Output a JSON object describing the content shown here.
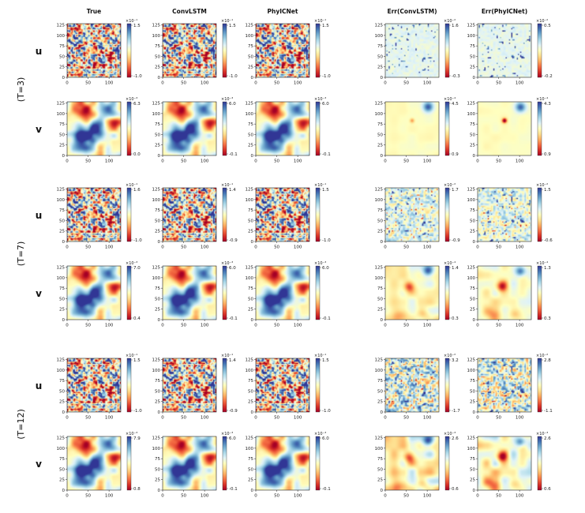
{
  "chart_data": {
    "type": "heatmap",
    "columns": [
      "True",
      "ConvLSTM",
      "PhyICNet",
      "Err(ConvLSTM)",
      "Err(PhyICNet)"
    ],
    "groups": [
      {
        "label": "(T=3)",
        "rows": [
          {
            "var": "u",
            "panels": [
              {
                "exp": "×10⁻¹",
                "max": "1.5",
                "min": "-1.0",
                "field": "u",
                "kind": "field"
              },
              {
                "exp": "×10⁻¹",
                "max": "1.5",
                "min": "-1.0",
                "field": "u",
                "kind": "field"
              },
              {
                "exp": "×10⁻¹",
                "max": "1.5",
                "min": "-1.0",
                "field": "u",
                "kind": "field"
              },
              {
                "exp": "×10⁻²",
                "max": "1.6",
                "min": "-0.3",
                "field": "u",
                "kind": "err"
              },
              {
                "exp": "×10⁻²",
                "max": "0.5",
                "min": "-0.2",
                "field": "u",
                "kind": "err"
              }
            ]
          },
          {
            "var": "v",
            "panels": [
              {
                "exp": "×10⁻³",
                "max": "6.3",
                "min": "0.0",
                "field": "v",
                "kind": "field"
              },
              {
                "exp": "×10⁻³",
                "max": "6.0",
                "min": "-0.1",
                "field": "v",
                "kind": "field"
              },
              {
                "exp": "×10⁻³",
                "max": "6.0",
                "min": "-0.1",
                "field": "v",
                "kind": "field"
              },
              {
                "exp": "×10⁻⁴",
                "max": "4.5",
                "min": "0.9",
                "field": "v",
                "kind": "err"
              },
              {
                "exp": "×10⁻⁴",
                "max": "4.3",
                "min": "0.9",
                "field": "v",
                "kind": "err"
              }
            ]
          }
        ]
      },
      {
        "label": "(T=7)",
        "rows": [
          {
            "var": "u",
            "panels": [
              {
                "exp": "×10⁻¹",
                "max": "1.6",
                "min": "-1.0",
                "field": "u",
                "kind": "field"
              },
              {
                "exp": "×10⁻¹",
                "max": "1.4",
                "min": "-0.9",
                "field": "u",
                "kind": "field"
              },
              {
                "exp": "×10⁻¹",
                "max": "1.5",
                "min": "-1.0",
                "field": "u",
                "kind": "field"
              },
              {
                "exp": "×10⁻²",
                "max": "1.7",
                "min": "-0.9",
                "field": "u",
                "kind": "err"
              },
              {
                "exp": "×10⁻²",
                "max": "1.5",
                "min": "-0.6",
                "field": "u",
                "kind": "err"
              }
            ]
          },
          {
            "var": "v",
            "panels": [
              {
                "exp": "×10⁻³",
                "max": "7.0",
                "min": "0.4",
                "field": "v",
                "kind": "field"
              },
              {
                "exp": "×10⁻³",
                "max": "6.0",
                "min": "-0.1",
                "field": "v",
                "kind": "field"
              },
              {
                "exp": "×10⁻³",
                "max": "6.0",
                "min": "-0.1",
                "field": "v",
                "kind": "field"
              },
              {
                "exp": "×10⁻⁴",
                "max": "1.4",
                "min": "0.3",
                "field": "v",
                "kind": "err"
              },
              {
                "exp": "×10⁻⁴",
                "max": "1.3",
                "min": "0.3",
                "field": "v",
                "kind": "err"
              }
            ]
          }
        ]
      },
      {
        "label": "(T=12)",
        "rows": [
          {
            "var": "u",
            "panels": [
              {
                "exp": "×10⁻¹",
                "max": "1.5",
                "min": "-1.0",
                "field": "u",
                "kind": "field"
              },
              {
                "exp": "×10⁻¹",
                "max": "1.4",
                "min": "-0.9",
                "field": "u",
                "kind": "field"
              },
              {
                "exp": "×10⁻¹",
                "max": "1.5",
                "min": "-1.0",
                "field": "u",
                "kind": "field"
              },
              {
                "exp": "×10⁻²",
                "max": "3.2",
                "min": "-1.7",
                "field": "u",
                "kind": "err"
              },
              {
                "exp": "×10⁻²",
                "max": "2.8",
                "min": "-1.1",
                "field": "u",
                "kind": "err"
              }
            ]
          },
          {
            "var": "v",
            "panels": [
              {
                "exp": "×10⁻³",
                "max": "7.9",
                "min": "0.8",
                "field": "v",
                "kind": "field"
              },
              {
                "exp": "×10⁻³",
                "max": "6.0",
                "min": "-0.1",
                "field": "v",
                "kind": "field"
              },
              {
                "exp": "×10⁻³",
                "max": "6.0",
                "min": "-0.1",
                "field": "v",
                "kind": "field"
              },
              {
                "exp": "×10⁻³",
                "max": "2.6",
                "min": "0.6",
                "field": "v",
                "kind": "err"
              },
              {
                "exp": "×10⁻³",
                "max": "2.6",
                "min": "0.6",
                "field": "v",
                "kind": "err"
              }
            ]
          }
        ]
      }
    ],
    "x_ticks": [
      0,
      50,
      100
    ],
    "y_ticks": [
      0,
      25,
      50,
      75,
      100,
      125
    ],
    "xlim": [
      0,
      128
    ],
    "ylim": [
      0,
      128
    ],
    "colormap": "RdYlBu",
    "grid": false
  }
}
